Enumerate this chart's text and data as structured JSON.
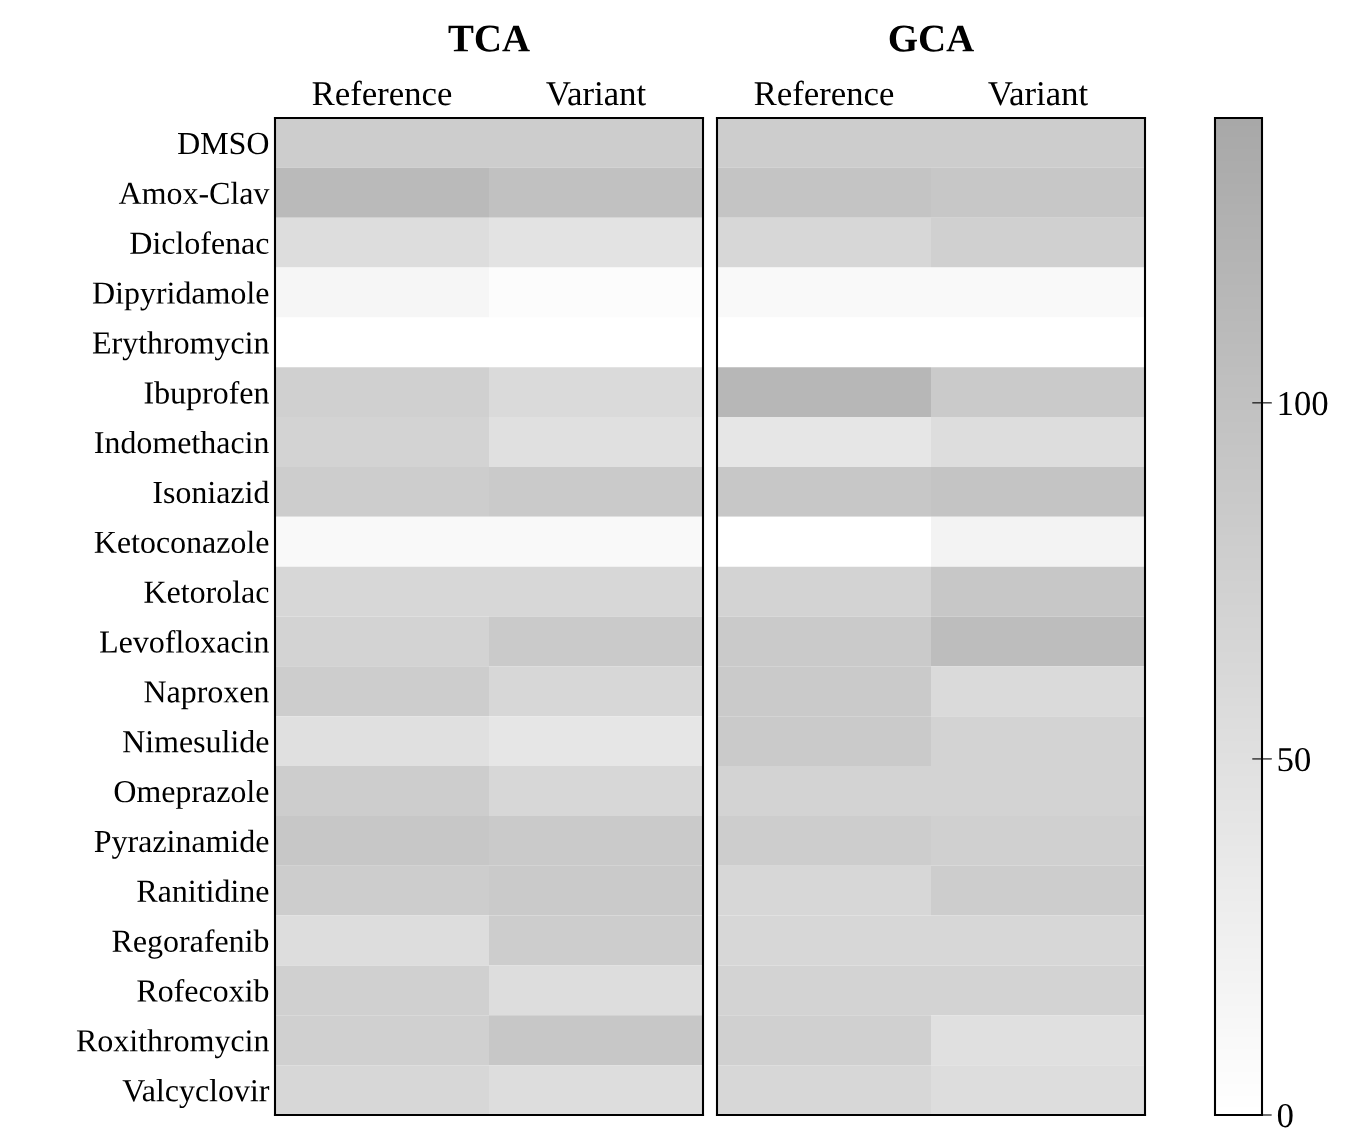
{
  "chart_data": {
    "type": "heatmap",
    "annotations": [
      "TCA",
      "GCA"
    ],
    "categories": [
      "Reference",
      "Variant",
      "Reference",
      "Variant"
    ],
    "y_categories": [
      "DMSO",
      "Amox-Clav",
      "Diclofenac",
      "Dipyridamole",
      "Erythromycin",
      "Ibuprofen",
      "Indomethacin",
      "Isoniazid",
      "Ketoconazole",
      "Ketorolac",
      "Levofloxacin",
      "Naproxen",
      "Nimesulide",
      "Omeprazole",
      "Pyrazinamide",
      "Ranitidine",
      "Regorafenib",
      "Rofecoxib",
      "Roxithromycin",
      "Valcyclovir"
    ],
    "cells": [
      [
        80,
        80,
        80,
        80
      ],
      [
        110,
        100,
        95,
        90
      ],
      [
        55,
        45,
        65,
        75
      ],
      [
        15,
        5,
        10,
        10
      ],
      [
        0,
        0,
        0,
        0
      ],
      [
        75,
        60,
        115,
        85
      ],
      [
        70,
        50,
        40,
        55
      ],
      [
        80,
        85,
        90,
        95
      ],
      [
        10,
        10,
        0,
        20
      ],
      [
        65,
        65,
        70,
        90
      ],
      [
        70,
        85,
        85,
        105
      ],
      [
        80,
        65,
        85,
        60
      ],
      [
        50,
        40,
        85,
        70
      ],
      [
        80,
        65,
        70,
        70
      ],
      [
        90,
        85,
        80,
        75
      ],
      [
        80,
        85,
        65,
        80
      ],
      [
        55,
        80,
        65,
        65
      ],
      [
        75,
        55,
        70,
        70
      ],
      [
        75,
        90,
        75,
        50
      ],
      [
        65,
        55,
        65,
        55
      ]
    ],
    "clim": [
      0,
      140
    ],
    "cticks": [
      0,
      50,
      100
    ]
  }
}
